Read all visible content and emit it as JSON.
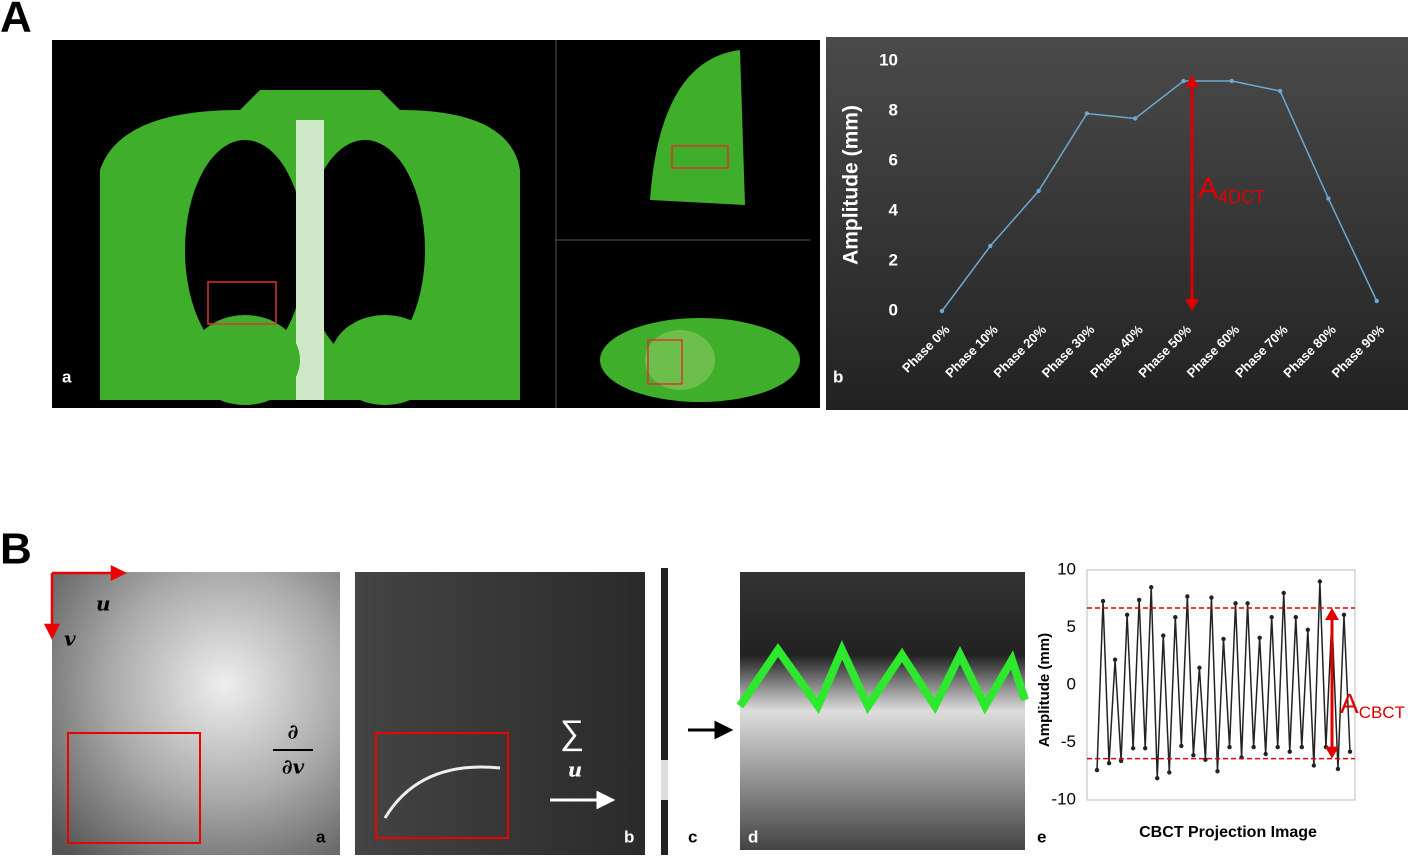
{
  "panel_labels": [
    "A",
    "B"
  ],
  "panel_A_sublabels": [
    "a",
    "b"
  ],
  "panel_B_sublabels": [
    "a",
    "b",
    "c",
    "d",
    "e"
  ],
  "symbols": {
    "u": "u",
    "v": "v",
    "derivative_top": "∂",
    "derivative_bottom": "∂v",
    "sum": "∑",
    "sum_index": "u"
  },
  "chart_data": [
    {
      "type": "line",
      "ylabel": "Amplitude (mm)",
      "categories": [
        "Phase 0%",
        "Phase 10%",
        "Phase 20%",
        "Phase 30%",
        "Phase 40%",
        "Phase 50%",
        "Phase 60%",
        "Phase 70%",
        "Phase 80%",
        "Phase 90%"
      ],
      "values": [
        0,
        2.6,
        4.8,
        7.9,
        7.7,
        9.2,
        9.2,
        8.8,
        4.5,
        0.4
      ],
      "color": "#6fa8d0",
      "ylim": [
        0,
        10
      ],
      "yticks": [
        0,
        2,
        4,
        6,
        8,
        10
      ],
      "annotation": {
        "text": "A",
        "subscript": "4DCT",
        "color": "#e00000"
      }
    },
    {
      "type": "line",
      "ylabel": "Amplitude  (mm)",
      "xlabel": "CBCT Projection Image",
      "values": [
        -7.4,
        7.3,
        -6.8,
        2.2,
        -6.6,
        6.1,
        -5.5,
        7.4,
        -5.5,
        8.5,
        -8.1,
        4.3,
        -7.6,
        5.9,
        -5.3,
        7.7,
        -6.1,
        1.5,
        -6.5,
        7.6,
        -7.5,
        4.0,
        -5.4,
        7.1,
        -6.3,
        7.1,
        -5.4,
        4.1,
        -6.0,
        5.9,
        -5.4,
        8.0,
        -5.8,
        5.9,
        -5.4,
        4.8,
        -7.0,
        9.0,
        -5.4,
        5.8,
        -7.3,
        6.1,
        -5.8
      ],
      "color": "#222222",
      "ylim": [
        -10,
        10
      ],
      "yticks": [
        -10,
        -5,
        0,
        5,
        10
      ],
      "reference_lines": [
        6.7,
        -6.4
      ],
      "reference_color": "#e00000",
      "annotation": {
        "text": "A",
        "subscript": "CBCT",
        "color": "#e00000"
      }
    }
  ]
}
